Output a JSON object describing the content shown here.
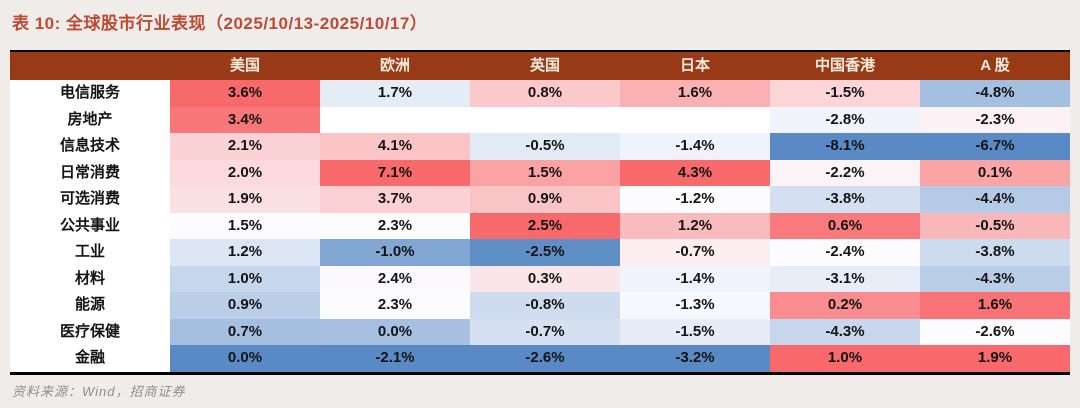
{
  "title": "表 10:  全球股市行业表现（2025/10/13-2025/10/17）",
  "source_note": "资料来源：Wind，招商证券",
  "colors": {
    "page_bg": "#EFECE9",
    "title_text": "#BE4A33",
    "header_bg": "#993A16",
    "header_text": "#F8ECDF",
    "table_bg": "#FFFFFF",
    "border": "#000000",
    "source_text": "#8F8F8C",
    "scale_max_red": "#F8696B",
    "scale_mid_white": "#FCFCFF",
    "scale_min_blue": "#5A8AC6"
  },
  "chart_data": {
    "type": "heatmap",
    "title": "全球股市行业表现（2025/10/13-2025/10/17）",
    "table_number_label": "表 10",
    "unit": "%",
    "value_format": "one_decimal_percent",
    "columns": [
      "美国",
      "欧洲",
      "英国",
      "日本",
      "中国香港",
      "A 股"
    ],
    "rows": [
      "电信服务",
      "房地产",
      "信息技术",
      "日常消费",
      "可选消费",
      "公共事业",
      "工业",
      "材料",
      "能源",
      "医疗保健",
      "金融"
    ],
    "values": [
      [
        3.6,
        1.7,
        0.8,
        1.6,
        -1.5,
        -4.8
      ],
      [
        3.4,
        null,
        null,
        null,
        -2.8,
        -2.3
      ],
      [
        2.1,
        4.1,
        -0.5,
        -1.4,
        -8.1,
        -6.7
      ],
      [
        2.0,
        7.1,
        1.5,
        4.3,
        -2.2,
        0.1
      ],
      [
        1.9,
        3.7,
        0.9,
        -1.2,
        -3.8,
        -4.4
      ],
      [
        1.5,
        2.3,
        2.5,
        1.2,
        0.6,
        -0.5
      ],
      [
        1.2,
        -1.0,
        -2.5,
        -0.7,
        -2.4,
        -3.8
      ],
      [
        1.0,
        2.4,
        0.3,
        -1.4,
        -3.1,
        -4.3
      ],
      [
        0.9,
        2.3,
        -0.8,
        -1.3,
        0.2,
        1.6
      ],
      [
        0.7,
        0.0,
        -0.7,
        -1.5,
        -4.3,
        -2.6
      ],
      [
        0.0,
        -2.1,
        -2.6,
        -3.2,
        1.0,
        1.9
      ]
    ],
    "color_scale": {
      "type": "3-color-per-column",
      "min_color": "#5A8AC6",
      "mid_color": "#FCFCFF",
      "max_color": "#F8696B",
      "midpoint": "column median",
      "note": "blank cells rendered white"
    },
    "legend_position": "none",
    "source": "资料来源：Wind，招商证券"
  }
}
